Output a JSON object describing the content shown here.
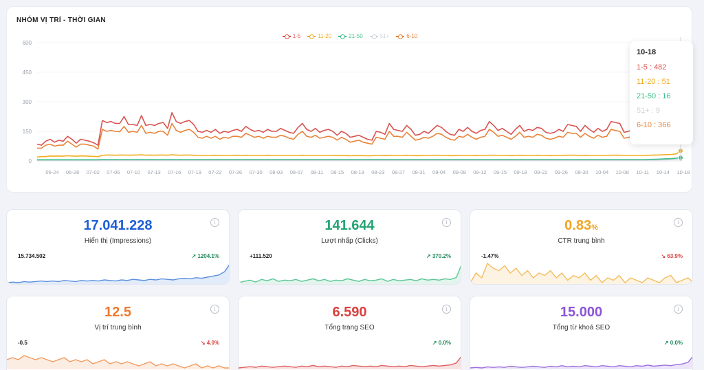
{
  "chart": {
    "title": "NHÓM VỊ TRÍ - THỜI GIAN",
    "legend": [
      {
        "label": "1-5",
        "color": "#d9534f"
      },
      {
        "label": "11-20",
        "color": "#f0ad1e"
      },
      {
        "label": "21-50",
        "color": "#3cbf8a"
      },
      {
        "label": "51+",
        "color": "#cfd3da"
      },
      {
        "label": "6-10",
        "color": "#e8843a"
      }
    ],
    "tooltip": {
      "date": "10-18",
      "rows": [
        {
          "text": "1-5 : 482",
          "color": "#d9534f"
        },
        {
          "text": "11-20 : 51",
          "color": "#f0ad1e"
        },
        {
          "text": "21-50 : 16",
          "color": "#3cbf8a"
        },
        {
          "text": "51+ : 9",
          "color": "#cfd3da"
        },
        {
          "text": "6-10 : 366",
          "color": "#e8843a"
        }
      ]
    }
  },
  "chart_data": {
    "type": "line",
    "ylim": [
      0,
      600
    ],
    "yticks": [
      0,
      150,
      300,
      450,
      600
    ],
    "xticks": [
      "06-24",
      "06-28",
      "07-02",
      "07-06",
      "07-10",
      "07-13",
      "07-16",
      "07-19",
      "07-22",
      "07-26",
      "07-30",
      "08-03",
      "08-07",
      "08-11",
      "08-15",
      "08-19",
      "08-23",
      "08-27",
      "08-31",
      "09-04",
      "09-08",
      "09-12",
      "09-15",
      "09-18",
      "09-22",
      "09-26",
      "09-30",
      "10-04",
      "10-08",
      "10-11",
      "10-14",
      "10-18"
    ],
    "series": [
      {
        "name": "1-5",
        "color": "#d9534f",
        "values": [
          85,
          80,
          100,
          110,
          95,
          105,
          100,
          125,
          110,
          90,
          110,
          105,
          100,
          92,
          80,
          205,
          195,
          200,
          190,
          190,
          225,
          185,
          185,
          180,
          230,
          180,
          185,
          180,
          190,
          195,
          165,
          245,
          200,
          190,
          200,
          205,
          185,
          150,
          145,
          155,
          145,
          160,
          140,
          150,
          145,
          155,
          160,
          150,
          175,
          160,
          150,
          155,
          145,
          160,
          150,
          150,
          165,
          155,
          145,
          140,
          170,
          190,
          160,
          150,
          165,
          145,
          155,
          160,
          150,
          130,
          150,
          140,
          120,
          125,
          130,
          120,
          110,
          105,
          150,
          145,
          135,
          190,
          160,
          155,
          150,
          180,
          160,
          130,
          135,
          150,
          140,
          160,
          180,
          170,
          150,
          135,
          130,
          160,
          150,
          170,
          150,
          140,
          155,
          160,
          200,
          180,
          155,
          165,
          150,
          135,
          160,
          180,
          150,
          160,
          155,
          170,
          165,
          145,
          140,
          145,
          160,
          150,
          185,
          180,
          175,
          150,
          180,
          160,
          145,
          165,
          150,
          160,
          200,
          195,
          190,
          145,
          150,
          160,
          170,
          160,
          175,
          205,
          210,
          200,
          225,
          230,
          230,
          200,
          482
        ]
      },
      {
        "name": "6-10",
        "color": "#e8843a",
        "values": [
          65,
          65,
          80,
          85,
          75,
          80,
          80,
          100,
          85,
          70,
          85,
          85,
          80,
          75,
          60,
          160,
          150,
          155,
          150,
          148,
          175,
          145,
          150,
          145,
          180,
          140,
          145,
          140,
          150,
          150,
          130,
          190,
          155,
          145,
          155,
          160,
          145,
          120,
          115,
          125,
          115,
          125,
          110,
          120,
          115,
          125,
          125,
          120,
          140,
          130,
          120,
          125,
          115,
          125,
          120,
          120,
          130,
          125,
          115,
          110,
          135,
          150,
          125,
          120,
          130,
          115,
          120,
          125,
          120,
          105,
          120,
          110,
          95,
          100,
          105,
          95,
          90,
          85,
          120,
          115,
          110,
          150,
          125,
          125,
          120,
          145,
          125,
          105,
          110,
          120,
          115,
          125,
          140,
          135,
          120,
          110,
          105,
          125,
          120,
          135,
          120,
          110,
          120,
          125,
          160,
          145,
          125,
          130,
          120,
          110,
          125,
          145,
          120,
          125,
          120,
          135,
          130,
          115,
          110,
          115,
          125,
          120,
          145,
          140,
          140,
          120,
          140,
          125,
          115,
          130,
          120,
          125,
          160,
          155,
          150,
          115,
          120,
          125,
          135,
          125,
          140,
          160,
          165,
          160,
          175,
          180,
          180,
          160,
          366
        ]
      },
      {
        "name": "11-20",
        "color": "#f0ad1e",
        "values": [
          20,
          22,
          22,
          25,
          24,
          25,
          24,
          26,
          25,
          24,
          25,
          25,
          24,
          23,
          22,
          28,
          30,
          30,
          29,
          30,
          30,
          29,
          30,
          30,
          31,
          29,
          30,
          29,
          30,
          30,
          29,
          31,
          30,
          29,
          30,
          30,
          29,
          28,
          28,
          28,
          28,
          29,
          28,
          28,
          28,
          28,
          29,
          28,
          29,
          28,
          28,
          28,
          28,
          29,
          28,
          28,
          28,
          28,
          28,
          28,
          28,
          29,
          28,
          28,
          28,
          28,
          28,
          28,
          28,
          27,
          28,
          27,
          26,
          27,
          27,
          27,
          26,
          26,
          28,
          28,
          27,
          29,
          28,
          28,
          28,
          29,
          28,
          27,
          27,
          28,
          28,
          28,
          29,
          28,
          28,
          27,
          27,
          28,
          28,
          28,
          28,
          27,
          28,
          28,
          29,
          29,
          28,
          28,
          28,
          27,
          28,
          29,
          28,
          28,
          28,
          29,
          28,
          28,
          27,
          28,
          28,
          28,
          29,
          29,
          29,
          28,
          29,
          28,
          28,
          28,
          28,
          28,
          29,
          29,
          29,
          28,
          28,
          28,
          28,
          28,
          28,
          29,
          30,
          30,
          31,
          32,
          33,
          36,
          51
        ]
      },
      {
        "name": "21-50",
        "color": "#3cbf8a",
        "values": [
          6,
          6,
          6,
          6,
          6,
          6,
          6,
          6,
          6,
          6,
          6,
          6,
          6,
          6,
          6,
          7,
          7,
          7,
          7,
          7,
          7,
          7,
          7,
          7,
          7,
          7,
          7,
          7,
          7,
          7,
          7,
          7,
          7,
          7,
          7,
          7,
          7,
          7,
          7,
          7,
          7,
          7,
          7,
          7,
          7,
          7,
          7,
          7,
          7,
          7,
          7,
          7,
          7,
          7,
          7,
          7,
          7,
          7,
          7,
          7,
          7,
          7,
          7,
          7,
          7,
          7,
          7,
          7,
          7,
          7,
          7,
          7,
          7,
          7,
          7,
          7,
          7,
          7,
          7,
          7,
          7,
          7,
          7,
          7,
          7,
          7,
          7,
          7,
          7,
          7,
          7,
          7,
          7,
          7,
          7,
          7,
          7,
          7,
          7,
          7,
          7,
          7,
          7,
          7,
          7,
          7,
          7,
          7,
          7,
          7,
          7,
          7,
          7,
          7,
          7,
          7,
          7,
          7,
          7,
          7,
          7,
          7,
          7,
          7,
          7,
          7,
          7,
          7,
          7,
          7,
          7,
          7,
          7,
          7,
          7,
          7,
          7,
          7,
          7,
          7,
          7,
          8,
          8,
          9,
          10,
          11,
          12,
          14,
          16
        ]
      },
      {
        "name": "51+",
        "color": "#cfd3da",
        "values": [
          3,
          3,
          3,
          3,
          3,
          3,
          3,
          3,
          3,
          3,
          3,
          3,
          3,
          3,
          3,
          4,
          4,
          4,
          4,
          4,
          4,
          4,
          4,
          4,
          4,
          4,
          4,
          4,
          4,
          4,
          4,
          4,
          4,
          4,
          4,
          4,
          4,
          4,
          4,
          4,
          4,
          4,
          4,
          4,
          4,
          4,
          4,
          4,
          4,
          4,
          4,
          4,
          4,
          4,
          4,
          4,
          4,
          4,
          4,
          4,
          4,
          4,
          4,
          4,
          4,
          4,
          4,
          4,
          4,
          4,
          4,
          4,
          4,
          4,
          4,
          4,
          4,
          4,
          4,
          4,
          4,
          4,
          4,
          4,
          4,
          4,
          4,
          4,
          4,
          4,
          4,
          4,
          4,
          4,
          4,
          4,
          4,
          4,
          4,
          4,
          4,
          4,
          4,
          4,
          4,
          4,
          4,
          4,
          4,
          4,
          4,
          4,
          4,
          4,
          4,
          4,
          4,
          4,
          4,
          4,
          4,
          4,
          4,
          4,
          4,
          4,
          4,
          4,
          4,
          4,
          4,
          4,
          4,
          4,
          4,
          4,
          4,
          4,
          4,
          4,
          4,
          5,
          5,
          5,
          6,
          6,
          7,
          8,
          9
        ]
      }
    ]
  },
  "metrics": [
    {
      "value": "17.041.228",
      "unit": "",
      "label": "Hiển thị (Impressions)",
      "base": "15.734.502",
      "change": "1204.1%",
      "trend": "up",
      "color": "#1f5fd6",
      "spark_color": "#5b8fdf",
      "spark": [
        10,
        11,
        10,
        12,
        11,
        12,
        13,
        12,
        13,
        12,
        14,
        13,
        12,
        14,
        13,
        14,
        13,
        15,
        14,
        13,
        15,
        14,
        16,
        15,
        14,
        16,
        15,
        17,
        16,
        15,
        17,
        18,
        17,
        19,
        18,
        20,
        22,
        24,
        30,
        45
      ]
    },
    {
      "value": "141.644",
      "unit": "",
      "label": "Lượt nhấp (Clicks)",
      "base": "+111.520",
      "change": "370.2%",
      "trend": "up",
      "color": "#22a574",
      "spark_color": "#5cc596",
      "spark": [
        10,
        12,
        14,
        11,
        15,
        13,
        16,
        12,
        14,
        13,
        15,
        12,
        14,
        16,
        13,
        15,
        12,
        14,
        13,
        16,
        14,
        12,
        15,
        13,
        14,
        16,
        12,
        15,
        13,
        14,
        15,
        13,
        16,
        14,
        15,
        14,
        16,
        15,
        18,
        40
      ]
    },
    {
      "value": "0.83",
      "unit": "%",
      "label": "CTR trung bình",
      "base": "-1.47%",
      "change": "63.9%",
      "trend": "down",
      "color": "#f0a422",
      "spark_color": "#f2bc5c",
      "spark": [
        22,
        26,
        24,
        30,
        28,
        27,
        29,
        26,
        28,
        25,
        27,
        24,
        26,
        25,
        27,
        24,
        26,
        23,
        25,
        24,
        26,
        23,
        25,
        22,
        24,
        23,
        25,
        22,
        24,
        23,
        22,
        24,
        23,
        22,
        24,
        25,
        22,
        23,
        24,
        22
      ]
    },
    {
      "value": "12.5",
      "unit": "",
      "label": "Vị trí trung bình",
      "base": "-0.5",
      "change": "4.0%",
      "trend": "down",
      "color": "#ee7a30",
      "spark_color": "#f19a5e",
      "spark": [
        14,
        15,
        14,
        16,
        15,
        14,
        15,
        14,
        13,
        14,
        15,
        13,
        14,
        13,
        14,
        12,
        13,
        14,
        12,
        13,
        12,
        13,
        12,
        11,
        12,
        13,
        11,
        12,
        11,
        12,
        11,
        10,
        11,
        12,
        10,
        11,
        10,
        11,
        10,
        10
      ]
    },
    {
      "value": "6.590",
      "unit": "",
      "label": "Tổng trang SEO",
      "base": "",
      "change": "0.0%",
      "trend": "up",
      "color": "#d9413f",
      "spark_color": "#df5e5c",
      "spark": [
        10,
        11,
        12,
        11,
        13,
        12,
        11,
        12,
        13,
        12,
        11,
        13,
        12,
        14,
        12,
        13,
        12,
        11,
        13,
        12,
        14,
        13,
        12,
        13,
        12,
        14,
        13,
        12,
        13,
        12,
        14,
        13,
        12,
        13,
        14,
        13,
        14,
        15,
        18,
        30
      ]
    },
    {
      "value": "15.000",
      "unit": "",
      "label": "Tổng từ khoá SEO",
      "base": "",
      "change": "0.0%",
      "trend": "up",
      "color": "#8a55d6",
      "spark_color": "#9c6fe0",
      "spark": [
        10,
        11,
        10,
        12,
        11,
        12,
        11,
        13,
        12,
        11,
        12,
        13,
        12,
        11,
        13,
        12,
        14,
        12,
        13,
        12,
        14,
        13,
        12,
        14,
        13,
        12,
        14,
        13,
        12,
        14,
        13,
        15,
        13,
        14,
        15,
        14,
        16,
        17,
        20,
        32
      ]
    }
  ]
}
